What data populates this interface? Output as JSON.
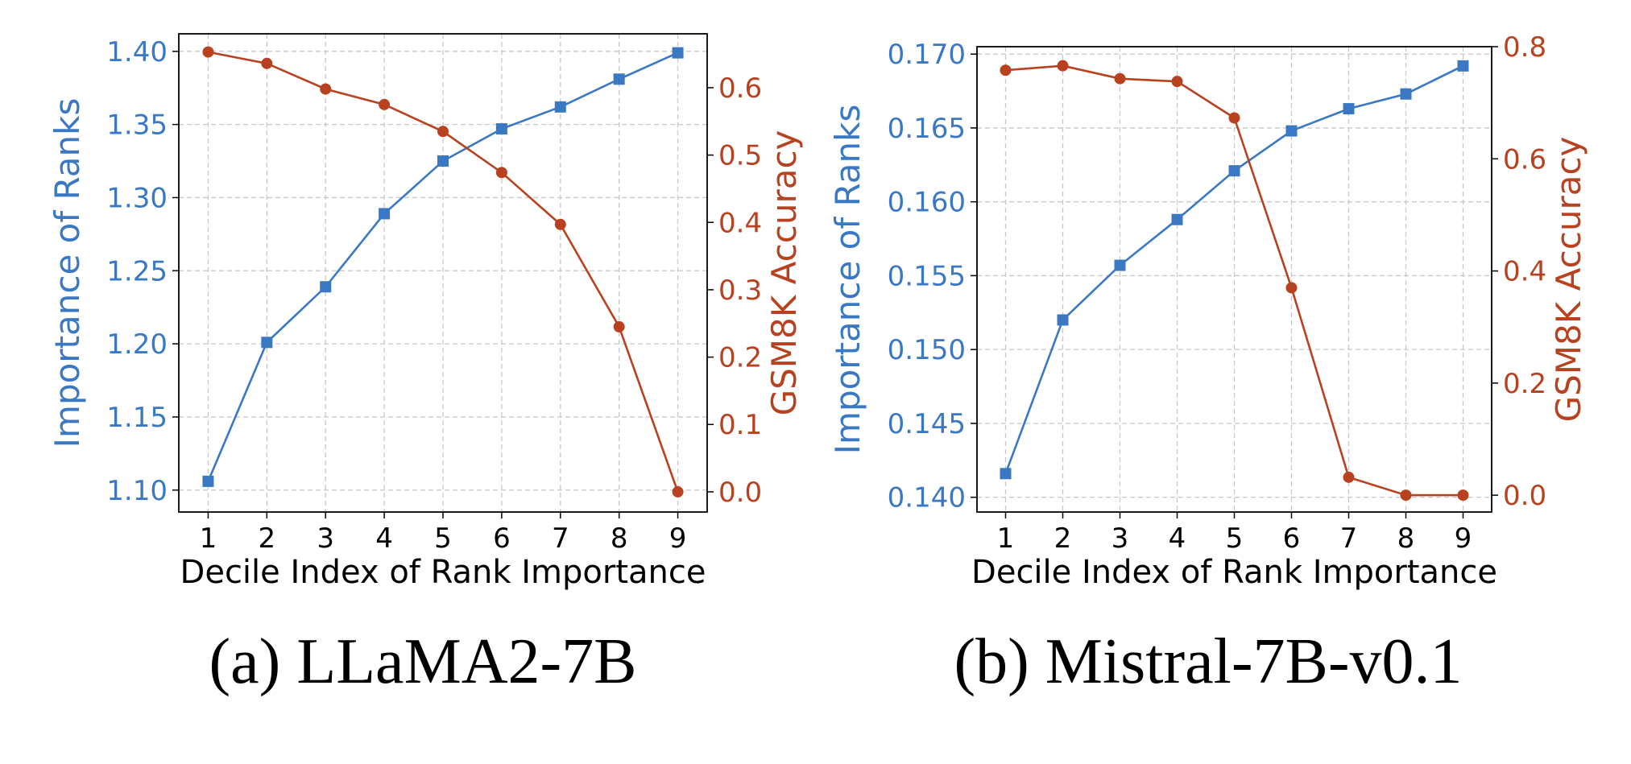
{
  "colors": {
    "left_axis": "#3A78C3",
    "right_axis": "#B8411F",
    "grid": "#c8c8c8",
    "frame": "#000000",
    "text": "#000000"
  },
  "chart_data": [
    {
      "type": "line",
      "caption": "(a) LLaMA2-7B",
      "xlabel": "Decile Index of Rank Importance",
      "ylabel_left": "Importance of Ranks",
      "ylabel_right": "GSM8K Accuracy",
      "x": [
        1,
        2,
        3,
        4,
        5,
        6,
        7,
        8,
        9
      ],
      "xlim": [
        0.5,
        9.5
      ],
      "ylim_left": [
        1.085,
        1.412
      ],
      "ylim_right": [
        -0.03,
        0.68
      ],
      "yticks_left": [
        "1.10",
        "1.15",
        "1.20",
        "1.25",
        "1.30",
        "1.35",
        "1.40"
      ],
      "yticks_right": [
        "0.0",
        "0.1",
        "0.2",
        "0.3",
        "0.4",
        "0.5",
        "0.6"
      ],
      "grid": true,
      "series": [
        {
          "name": "Importance of Ranks",
          "axis": "left",
          "marker": "square",
          "values": [
            1.106,
            1.201,
            1.239,
            1.289,
            1.325,
            1.347,
            1.362,
            1.381,
            1.399
          ]
        },
        {
          "name": "GSM8K Accuracy",
          "axis": "right",
          "marker": "circle",
          "values": [
            0.653,
            0.636,
            0.598,
            0.575,
            0.535,
            0.474,
            0.397,
            0.245,
            0.0
          ]
        }
      ]
    },
    {
      "type": "line",
      "caption": "(b) Mistral-7B-v0.1",
      "xlabel": "Decile Index of Rank Importance",
      "ylabel_left": "Importance of Ranks",
      "ylabel_right": "GSM8K Accuracy",
      "x": [
        1,
        2,
        3,
        4,
        5,
        6,
        7,
        8,
        9
      ],
      "xlim": [
        0.5,
        9.5
      ],
      "ylim_left": [
        0.139,
        0.1705
      ],
      "ylim_right": [
        -0.03,
        0.8
      ],
      "yticks_left": [
        "0.140",
        "0.145",
        "0.150",
        "0.155",
        "0.160",
        "0.165",
        "0.170"
      ],
      "yticks_right": [
        "0.0",
        "0.2",
        "0.4",
        "0.6",
        "0.8"
      ],
      "grid": true,
      "series": [
        {
          "name": "Importance of Ranks",
          "axis": "left",
          "marker": "square",
          "values": [
            0.1416,
            0.152,
            0.1557,
            0.1588,
            0.1621,
            0.1648,
            0.1663,
            0.1673,
            0.1692
          ]
        },
        {
          "name": "GSM8K Accuracy",
          "axis": "right",
          "marker": "circle",
          "values": [
            0.758,
            0.766,
            0.743,
            0.738,
            0.673,
            0.37,
            0.032,
            0.0,
            0.0
          ]
        }
      ]
    }
  ]
}
